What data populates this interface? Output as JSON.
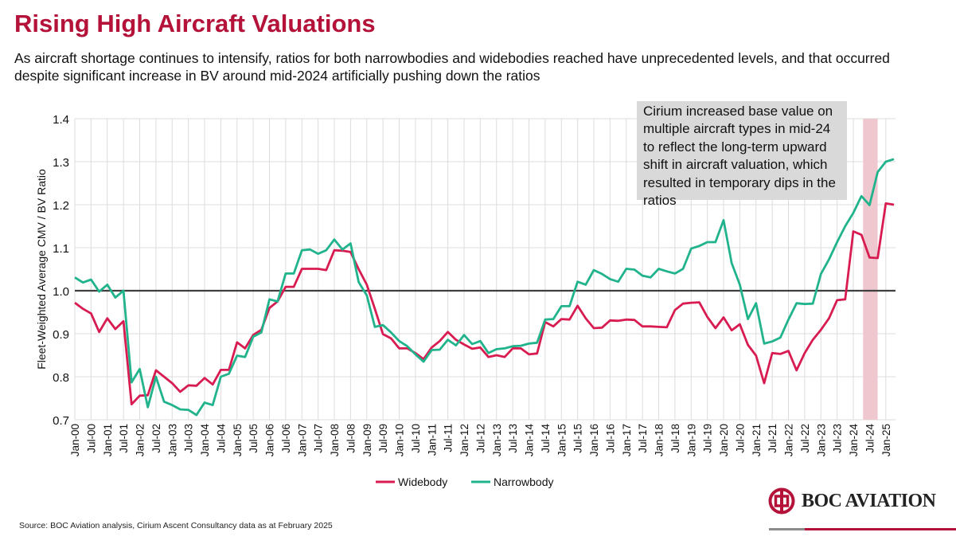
{
  "header": {
    "title": "Rising High Aircraft Valuations",
    "subtitle": "As aircraft shortage continues to intensify, ratios for both narrowbodies and widebodies reached have unprecedented levels, and that occurred despite significant increase in BV around mid-2024 artificially pushing down the ratios"
  },
  "annotation": "Cirium increased base value on multiple aircraft types in mid-24 to reflect the long-term upward shift in aircraft valuation, which resulted in temporary dips in the ratios",
  "source": "Source: BOC Aviation analysis, Cirium Ascent Consultancy data as at February 2025",
  "logo": {
    "text": "BOC AVIATION"
  },
  "colors": {
    "title": "#b5123a",
    "widebody": "#d81b50",
    "narrowbody": "#20b38c",
    "reference": "#404040",
    "band": "#efc7cf",
    "annotation_bg": "#d9d9d9"
  },
  "chart_data": {
    "type": "line",
    "title": "Rising High Aircraft Valuations",
    "xlabel": "",
    "ylabel": "Fleet-Weighted Average CMV / BV Ratio",
    "x_unit": "year (quarterly points starting Jan-00)",
    "x_start": 2000,
    "x_step": 0.25,
    "xlim": [
      2000,
      2025.3
    ],
    "ylim": [
      0.7,
      1.4
    ],
    "yticks": [
      0.7,
      0.8,
      0.9,
      1.0,
      1.1,
      1.2,
      1.3,
      1.4
    ],
    "ytick_labels": [
      "0.7",
      "0.8",
      "0.9",
      "1.0",
      "1.1",
      "1.2",
      "1.3",
      "1.4"
    ],
    "xtick_labels": [
      "Jan-00",
      "Jul-00",
      "Jan-01",
      "Jul-01",
      "Jan-02",
      "Jul-02",
      "Jan-03",
      "Jul-03",
      "Jan-04",
      "Jul-04",
      "Jan-05",
      "Jul-05",
      "Jan-06",
      "Jul-06",
      "Jan-07",
      "Jul-07",
      "Jan-08",
      "Jul-08",
      "Jan-09",
      "Jul-09",
      "Jan-10",
      "Jul-10",
      "Jan-11",
      "Jul-11",
      "Jan-12",
      "Jul-12",
      "Jan-13",
      "Jul-13",
      "Jan-14",
      "Jul-14",
      "Jan-15",
      "Jul-15",
      "Jan-16",
      "Jul-16",
      "Jan-17",
      "Jul-17",
      "Jan-18",
      "Jul-18",
      "Jan-19",
      "Jul-19",
      "Jan-20",
      "Jul-20",
      "Jan-21",
      "Jul-21",
      "Jan-22",
      "Jul-22",
      "Jan-23",
      "Jul-23",
      "Jan-24",
      "Jul-24",
      "Jan-25"
    ],
    "grid": true,
    "reference_line": 1.0,
    "shaded_band": [
      2024.3,
      2024.75
    ],
    "legend": "bottom-center",
    "series": [
      {
        "name": "Widebody",
        "values": [
          0.972,
          0.958,
          0.947,
          0.904,
          0.936,
          0.911,
          0.929,
          0.736,
          0.756,
          0.757,
          0.815,
          0.8,
          0.785,
          0.765,
          0.78,
          0.779,
          0.797,
          0.782,
          0.816,
          0.816,
          0.88,
          0.866,
          0.897,
          0.909,
          0.96,
          0.975,
          1.009,
          1.009,
          1.051,
          1.051,
          1.051,
          1.048,
          1.094,
          1.093,
          1.09,
          1.05,
          1.014,
          0.958,
          0.899,
          0.889,
          0.866,
          0.866,
          0.855,
          0.841,
          0.868,
          0.883,
          0.904,
          0.886,
          0.875,
          0.865,
          0.868,
          0.846,
          0.85,
          0.846,
          0.866,
          0.866,
          0.852,
          0.854,
          0.927,
          0.917,
          0.934,
          0.933,
          0.965,
          0.936,
          0.913,
          0.914,
          0.931,
          0.93,
          0.933,
          0.932,
          0.917,
          0.917,
          0.916,
          0.915,
          0.955,
          0.97,
          0.972,
          0.973,
          0.939,
          0.913,
          0.938,
          0.908,
          0.922,
          0.874,
          0.849,
          0.785,
          0.855,
          0.853,
          0.86,
          0.815,
          0.855,
          0.886,
          0.909,
          0.936,
          0.978,
          0.98,
          1.138,
          1.13,
          1.077,
          1.076,
          1.203,
          1.2
        ]
      },
      {
        "name": "Narrowbody",
        "values": [
          1.031,
          1.019,
          1.026,
          0.998,
          1.014,
          0.984,
          1.0,
          0.787,
          0.818,
          0.729,
          0.8,
          0.742,
          0.734,
          0.724,
          0.723,
          0.711,
          0.74,
          0.734,
          0.8,
          0.807,
          0.849,
          0.846,
          0.893,
          0.903,
          0.98,
          0.975,
          1.04,
          1.04,
          1.094,
          1.096,
          1.086,
          1.094,
          1.119,
          1.096,
          1.11,
          1.02,
          0.989,
          0.916,
          0.92,
          0.903,
          0.883,
          0.871,
          0.852,
          0.835,
          0.862,
          0.863,
          0.886,
          0.873,
          0.897,
          0.876,
          0.883,
          0.855,
          0.864,
          0.866,
          0.871,
          0.872,
          0.877,
          0.879,
          0.933,
          0.934,
          0.964,
          0.964,
          1.021,
          1.014,
          1.048,
          1.039,
          1.027,
          1.021,
          1.051,
          1.049,
          1.035,
          1.031,
          1.051,
          1.045,
          1.04,
          1.051,
          1.098,
          1.104,
          1.113,
          1.113,
          1.164,
          1.064,
          1.014,
          0.934,
          0.971,
          0.877,
          0.882,
          0.891,
          0.933,
          0.971,
          0.969,
          0.97,
          1.039,
          1.073,
          1.113,
          1.15,
          1.181,
          1.22,
          1.199,
          1.276,
          1.3,
          1.306
        ]
      }
    ]
  }
}
